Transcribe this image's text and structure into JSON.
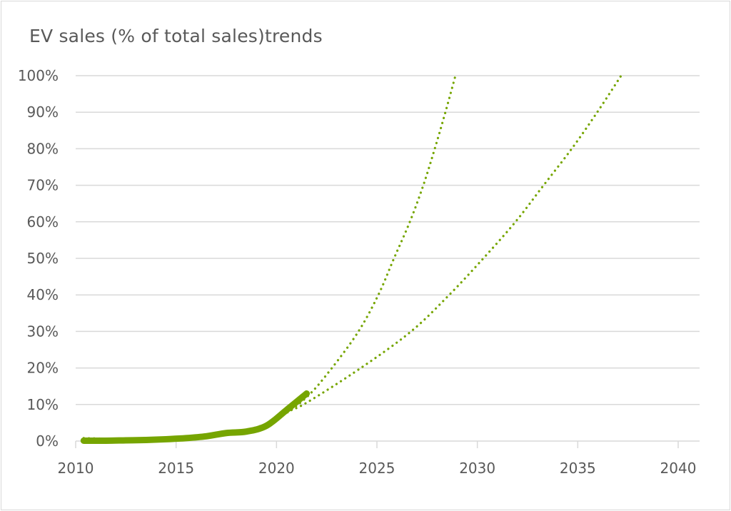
{
  "chart_data": {
    "type": "line",
    "title": "EV sales (% of total sales)trends",
    "xlabel": "",
    "ylabel": "",
    "xlim": [
      2010,
      2040
    ],
    "ylim": [
      0,
      100
    ],
    "x_ticks": [
      "2010",
      "2015",
      "2020",
      "2025",
      "2030",
      "2035",
      "2040"
    ],
    "y_ticks": [
      "0%",
      "10%",
      "20%",
      "30%",
      "40%",
      "50%",
      "60%",
      "70%",
      "80%",
      "90%",
      "100%"
    ],
    "grid": true,
    "legend": "none",
    "color": "#76a500",
    "series": [
      {
        "style": "solid-thick",
        "x": [
          2010.4,
          2011.5,
          2012.5,
          2013.5,
          2014.5,
          2015.5,
          2016.5,
          2017.5,
          2018.5,
          2019.5,
          2020.5,
          2021.5
        ],
        "y": [
          0.1,
          0.1,
          0.2,
          0.3,
          0.5,
          0.8,
          1.3,
          2.2,
          2.6,
          4.2,
          8.5,
          13
        ]
      },
      {
        "style": "dotted-trend",
        "x": [
          2010.4,
          2014,
          2017,
          2018.5,
          2020,
          2021.5,
          2022.76,
          2024.08,
          2025.07,
          2025.85,
          2026.64,
          2027.31,
          2027.88,
          2028.41,
          2028.91
        ],
        "y": [
          0.8,
          0.5,
          1.5,
          3,
          6,
          12,
          20,
          30,
          40,
          50,
          60,
          70,
          80,
          90,
          100
        ]
      },
      {
        "style": "dotted-trend",
        "x": [
          2020.5,
          2021.5,
          2024.2,
          2026.7,
          2028.6,
          2030.3,
          2031.9,
          2033.3,
          2034.7,
          2035.97,
          2037.16
        ],
        "y": [
          8,
          10.5,
          20,
          30,
          40,
          50,
          60,
          70,
          80,
          90,
          100
        ]
      }
    ]
  }
}
